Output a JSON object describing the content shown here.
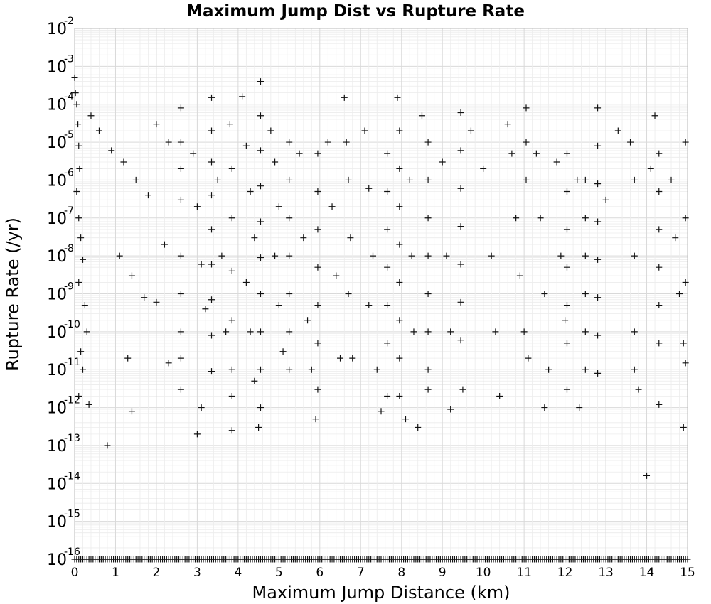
{
  "chart_data": {
    "type": "scatter",
    "title": "Maximum Jump Dist vs Rupture Rate",
    "xlabel": "Maximum Jump Distance (km)",
    "ylabel": "Rupture Rate (/yr)",
    "xlim": [
      0,
      15
    ],
    "ylim": [
      1e-16,
      0.01
    ],
    "yscale": "log",
    "grid": true,
    "marker": "+",
    "color": "#111111",
    "x_ticks": [
      "0",
      "1",
      "2",
      "3",
      "4",
      "5",
      "6",
      "7",
      "8",
      "9",
      "10",
      "11",
      "12",
      "13",
      "14",
      "15"
    ],
    "y_ticks": [
      {
        "base": "10",
        "exp": "-2",
        "value": 0.01
      },
      {
        "base": "10",
        "exp": "-3",
        "value": 0.001
      },
      {
        "base": "10",
        "exp": "-4",
        "value": 0.0001
      },
      {
        "base": "10",
        "exp": "-5",
        "value": 1e-05
      },
      {
        "base": "10",
        "exp": "-6",
        "value": 1e-06
      },
      {
        "base": "10",
        "exp": "-7",
        "value": 1e-07
      },
      {
        "base": "10",
        "exp": "-8",
        "value": 1e-08
      },
      {
        "base": "10",
        "exp": "-9",
        "value": 1e-09
      },
      {
        "base": "10",
        "exp": "-10",
        "value": 1e-10
      },
      {
        "base": "10",
        "exp": "-11",
        "value": 1e-11
      },
      {
        "base": "10",
        "exp": "-12",
        "value": 1e-12
      },
      {
        "base": "10",
        "exp": "-13",
        "value": 1e-13
      },
      {
        "base": "10",
        "exp": "-14",
        "value": 1e-14
      },
      {
        "base": "10",
        "exp": "-15",
        "value": 1e-15
      },
      {
        "base": "10",
        "exp": "-16",
        "value": 1e-16
      }
    ],
    "series": [
      {
        "points": [
          [
            0.0,
            0.0005
          ],
          [
            0.02,
            0.0002
          ],
          [
            0.05,
            0.0001
          ],
          [
            0.08,
            3e-05
          ],
          [
            0.1,
            8e-06
          ],
          [
            0.12,
            2e-06
          ],
          [
            0.05,
            5e-07
          ],
          [
            0.1,
            1e-07
          ],
          [
            0.15,
            3e-08
          ],
          [
            0.2,
            8e-09
          ],
          [
            0.1,
            2e-09
          ],
          [
            0.25,
            5e-10
          ],
          [
            0.3,
            1e-10
          ],
          [
            0.15,
            3e-11
          ],
          [
            0.2,
            1e-11
          ],
          [
            0.1,
            2e-12
          ],
          [
            0.35,
            1.2e-12
          ],
          [
            0.8,
            1e-13
          ],
          [
            0.4,
            5e-05
          ],
          [
            0.6,
            2e-05
          ],
          [
            0.9,
            6e-06
          ],
          [
            1.2,
            3e-06
          ],
          [
            1.5,
            1e-06
          ],
          [
            1.8,
            4e-07
          ],
          [
            1.1,
            1e-08
          ],
          [
            1.4,
            3e-09
          ],
          [
            1.7,
            8e-10
          ],
          [
            1.3,
            2e-11
          ],
          [
            1.4,
            8e-13
          ],
          [
            2.0,
            3e-05
          ],
          [
            2.3,
            1e-05
          ],
          [
            2.2,
            2e-08
          ],
          [
            2.0,
            6e-10
          ],
          [
            2.3,
            1.5e-11
          ],
          [
            2.6,
            8e-05
          ],
          [
            2.6,
            1e-05
          ],
          [
            2.6,
            2e-06
          ],
          [
            2.6,
            3e-07
          ],
          [
            2.6,
            1e-08
          ],
          [
            2.6,
            1e-09
          ],
          [
            2.6,
            1e-10
          ],
          [
            2.6,
            2e-11
          ],
          [
            2.6,
            3e-12
          ],
          [
            2.9,
            5e-06
          ],
          [
            3.0,
            2e-07
          ],
          [
            3.1,
            6e-09
          ],
          [
            3.2,
            4e-10
          ],
          [
            3.0,
            2e-13
          ],
          [
            3.1,
            1e-12
          ],
          [
            3.35,
            0.00015
          ],
          [
            3.35,
            2e-05
          ],
          [
            3.35,
            3e-06
          ],
          [
            3.35,
            4e-07
          ],
          [
            3.35,
            5e-08
          ],
          [
            3.35,
            6e-09
          ],
          [
            3.35,
            7e-10
          ],
          [
            3.35,
            8e-11
          ],
          [
            3.35,
            9e-12
          ],
          [
            3.5,
            1e-06
          ],
          [
            3.6,
            1e-08
          ],
          [
            3.7,
            1e-10
          ],
          [
            3.8,
            3e-05
          ],
          [
            3.85,
            2e-06
          ],
          [
            3.85,
            1e-07
          ],
          [
            3.85,
            4e-09
          ],
          [
            3.85,
            2e-10
          ],
          [
            3.85,
            1e-11
          ],
          [
            3.85,
            2e-12
          ],
          [
            3.85,
            2.5e-13
          ],
          [
            4.1,
            0.00016
          ],
          [
            4.2,
            8e-06
          ],
          [
            4.3,
            5e-07
          ],
          [
            4.4,
            3e-08
          ],
          [
            4.2,
            2e-09
          ],
          [
            4.3,
            1e-10
          ],
          [
            4.4,
            5e-12
          ],
          [
            4.5,
            3e-13
          ],
          [
            4.55,
            0.0004
          ],
          [
            4.55,
            5e-05
          ],
          [
            4.55,
            6e-06
          ],
          [
            4.55,
            7e-07
          ],
          [
            4.55,
            8e-08
          ],
          [
            4.55,
            9e-09
          ],
          [
            4.55,
            1e-09
          ],
          [
            4.55,
            1e-10
          ],
          [
            4.55,
            1e-11
          ],
          [
            4.55,
            1e-12
          ],
          [
            4.8,
            2e-05
          ],
          [
            4.9,
            3e-06
          ],
          [
            5.0,
            2e-07
          ],
          [
            4.9,
            1e-08
          ],
          [
            5.0,
            5e-10
          ],
          [
            5.1,
            3e-11
          ],
          [
            5.25,
            1e-05
          ],
          [
            5.25,
            1e-06
          ],
          [
            5.25,
            1e-07
          ],
          [
            5.25,
            1e-08
          ],
          [
            5.25,
            1e-09
          ],
          [
            5.25,
            1e-10
          ],
          [
            5.25,
            1e-11
          ],
          [
            5.5,
            5e-06
          ],
          [
            5.6,
            3e-08
          ],
          [
            5.7,
            2e-10
          ],
          [
            5.8,
            1e-11
          ],
          [
            5.95,
            5e-06
          ],
          [
            5.95,
            5e-07
          ],
          [
            5.95,
            5e-08
          ],
          [
            5.95,
            5e-09
          ],
          [
            5.95,
            5e-10
          ],
          [
            5.95,
            5e-11
          ],
          [
            5.95,
            3e-12
          ],
          [
            5.9,
            5e-13
          ],
          [
            6.2,
            1e-05
          ],
          [
            6.3,
            2e-07
          ],
          [
            6.4,
            3e-09
          ],
          [
            6.5,
            2e-11
          ],
          [
            6.6,
            0.00015
          ],
          [
            6.65,
            1e-05
          ],
          [
            6.7,
            1e-06
          ],
          [
            6.75,
            3e-08
          ],
          [
            6.7,
            1e-09
          ],
          [
            6.8,
            2e-11
          ],
          [
            7.1,
            2e-05
          ],
          [
            7.2,
            6e-07
          ],
          [
            7.3,
            1e-08
          ],
          [
            7.2,
            5e-10
          ],
          [
            7.4,
            1e-11
          ],
          [
            7.5,
            8e-13
          ],
          [
            7.65,
            5e-06
          ],
          [
            7.65,
            5e-07
          ],
          [
            7.65,
            5e-08
          ],
          [
            7.65,
            5e-09
          ],
          [
            7.65,
            5e-10
          ],
          [
            7.65,
            5e-11
          ],
          [
            7.65,
            2e-12
          ],
          [
            7.9,
            0.00015
          ],
          [
            7.95,
            2e-05
          ],
          [
            7.95,
            2e-06
          ],
          [
            7.95,
            2e-07
          ],
          [
            7.95,
            2e-08
          ],
          [
            7.95,
            2e-09
          ],
          [
            7.95,
            2e-10
          ],
          [
            7.95,
            2e-11
          ],
          [
            7.95,
            2e-12
          ],
          [
            8.1,
            5e-13
          ],
          [
            8.2,
            1e-06
          ],
          [
            8.25,
            1e-08
          ],
          [
            8.3,
            1e-10
          ],
          [
            8.4,
            3e-13
          ],
          [
            8.5,
            5e-05
          ],
          [
            8.65,
            1e-05
          ],
          [
            8.65,
            1e-06
          ],
          [
            8.65,
            1e-07
          ],
          [
            8.65,
            1e-08
          ],
          [
            8.65,
            1e-09
          ],
          [
            8.65,
            1e-10
          ],
          [
            8.65,
            1e-11
          ],
          [
            8.65,
            3e-12
          ],
          [
            9.0,
            3e-06
          ],
          [
            9.1,
            1e-08
          ],
          [
            9.2,
            1e-10
          ],
          [
            9.2,
            9e-13
          ],
          [
            9.45,
            6e-05
          ],
          [
            9.45,
            6e-06
          ],
          [
            9.45,
            6e-07
          ],
          [
            9.45,
            6e-08
          ],
          [
            9.45,
            6e-09
          ],
          [
            9.45,
            6e-10
          ],
          [
            9.45,
            6e-11
          ],
          [
            9.5,
            3e-12
          ],
          [
            9.7,
            2e-05
          ],
          [
            10.0,
            2e-06
          ],
          [
            10.2,
            1e-08
          ],
          [
            10.3,
            1e-10
          ],
          [
            10.4,
            2e-12
          ],
          [
            10.6,
            3e-05
          ],
          [
            10.7,
            5e-06
          ],
          [
            10.8,
            1e-07
          ],
          [
            10.9,
            3e-09
          ],
          [
            11.0,
            1e-10
          ],
          [
            11.1,
            2e-11
          ],
          [
            11.05,
            8e-05
          ],
          [
            11.05,
            1e-05
          ],
          [
            11.05,
            1e-06
          ],
          [
            11.3,
            5e-06
          ],
          [
            11.4,
            1e-07
          ],
          [
            11.5,
            1e-09
          ],
          [
            11.6,
            1e-11
          ],
          [
            11.5,
            1e-12
          ],
          [
            11.8,
            3e-06
          ],
          [
            11.9,
            1e-08
          ],
          [
            12.0,
            2e-10
          ],
          [
            12.05,
            5e-06
          ],
          [
            12.05,
            5e-07
          ],
          [
            12.05,
            5e-08
          ],
          [
            12.05,
            5e-09
          ],
          [
            12.05,
            5e-10
          ],
          [
            12.05,
            5e-11
          ],
          [
            12.05,
            3e-12
          ],
          [
            12.3,
            1e-06
          ],
          [
            12.35,
            1e-12
          ],
          [
            12.5,
            1e-06
          ],
          [
            12.5,
            1e-07
          ],
          [
            12.5,
            1e-08
          ],
          [
            12.5,
            1e-09
          ],
          [
            12.5,
            1e-10
          ],
          [
            12.5,
            1e-11
          ],
          [
            12.8,
            8e-05
          ],
          [
            12.8,
            8e-06
          ],
          [
            12.8,
            8e-07
          ],
          [
            12.8,
            8e-08
          ],
          [
            12.8,
            8e-09
          ],
          [
            12.8,
            8e-10
          ],
          [
            12.8,
            8e-11
          ],
          [
            12.8,
            8e-12
          ],
          [
            13.0,
            3e-07
          ],
          [
            13.3,
            2e-05
          ],
          [
            13.6,
            1e-05
          ],
          [
            13.7,
            1e-06
          ],
          [
            13.7,
            1e-08
          ],
          [
            13.7,
            1e-10
          ],
          [
            13.7,
            1e-11
          ],
          [
            13.8,
            3e-12
          ],
          [
            14.0,
            1.6e-14
          ],
          [
            14.1,
            2e-06
          ],
          [
            14.2,
            5e-05
          ],
          [
            14.3,
            5e-06
          ],
          [
            14.3,
            5e-07
          ],
          [
            14.3,
            5e-08
          ],
          [
            14.3,
            5e-09
          ],
          [
            14.3,
            5e-10
          ],
          [
            14.3,
            5e-11
          ],
          [
            14.3,
            1.2e-12
          ],
          [
            14.6,
            1e-06
          ],
          [
            14.7,
            3e-08
          ],
          [
            14.8,
            1e-09
          ],
          [
            14.9,
            5e-11
          ],
          [
            14.95,
            1e-05
          ],
          [
            14.95,
            1e-07
          ],
          [
            14.95,
            2e-09
          ],
          [
            14.95,
            1.5e-11
          ],
          [
            14.9,
            3e-13
          ]
        ]
      }
    ],
    "floor_value": 1e-16
  }
}
